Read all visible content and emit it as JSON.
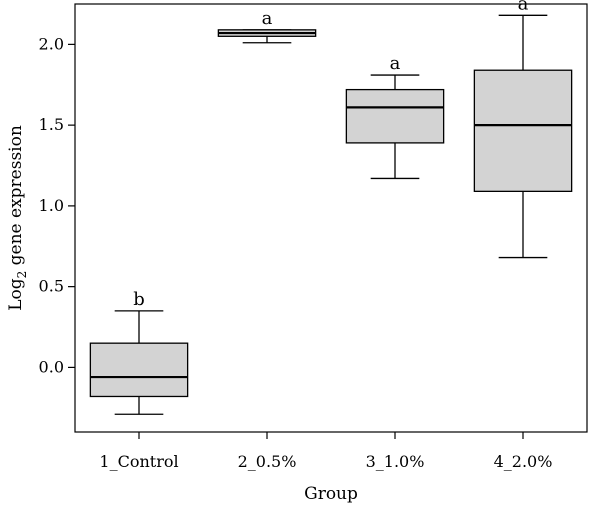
{
  "chart_data": {
    "type": "box",
    "xlabel": "Group",
    "ylabel": {
      "main": "Log",
      "subscript": "2",
      "rest": " gene expression"
    },
    "ylim": [
      -0.4,
      2.25
    ],
    "yticks": [
      "0.0",
      "0.5",
      "1.0",
      "1.5",
      "2.0"
    ],
    "categories": [
      "1_Control",
      "2_0.5%",
      "3_1.0%",
      "4_2.0%"
    ],
    "boxes": [
      {
        "category": "1_Control",
        "whisker_low": -0.29,
        "q1": -0.18,
        "median": -0.06,
        "q3": 0.15,
        "whisker_high": 0.35,
        "letter": "b"
      },
      {
        "category": "2_0.5%",
        "whisker_low": 2.01,
        "q1": 2.05,
        "median": 2.07,
        "q3": 2.09,
        "whisker_high": 2.09,
        "letter": "a"
      },
      {
        "category": "3_1.0%",
        "whisker_low": 1.17,
        "q1": 1.39,
        "median": 1.61,
        "q3": 1.72,
        "whisker_high": 1.81,
        "letter": "a"
      },
      {
        "category": "4_2.0%",
        "whisker_low": 0.68,
        "q1": 1.09,
        "median": 1.5,
        "q3": 1.84,
        "whisker_high": 2.18,
        "letter": "a"
      }
    ],
    "box_fill": "#d3d3d3",
    "grid": false,
    "legend": "none"
  }
}
